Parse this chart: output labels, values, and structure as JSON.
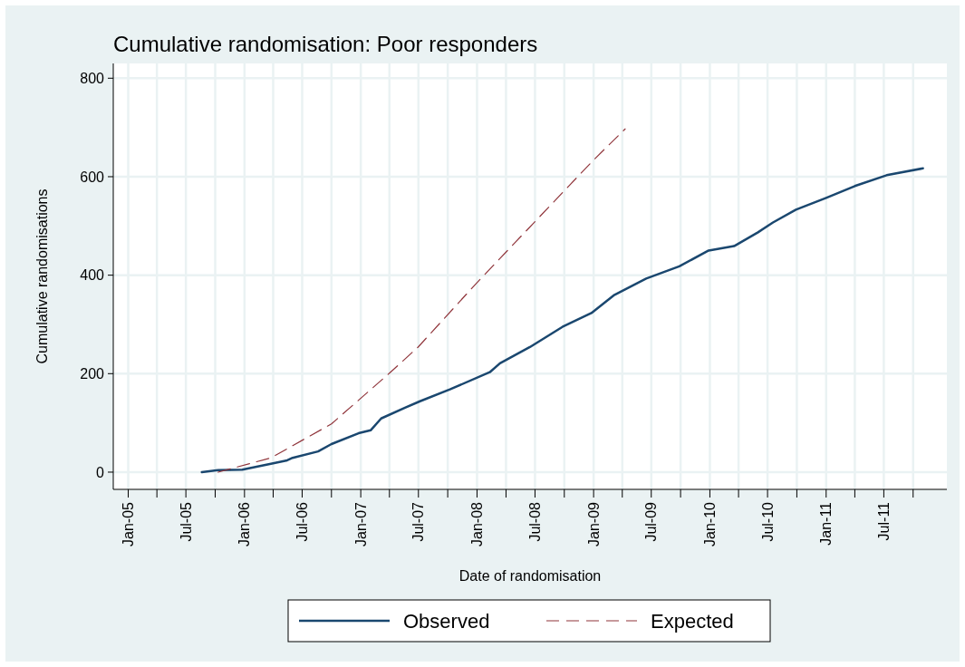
{
  "chart_data": {
    "type": "line",
    "title": "Cumulative randomisation: Poor responders",
    "xlabel": "Date of randomisation",
    "ylabel": "Cumulative randomisations",
    "xlim": [
      "2004-11-15",
      "2012-01-15"
    ],
    "ylim": [
      -35,
      830
    ],
    "xticks": [
      {
        "value": "2005-01",
        "label": "Jan-05"
      },
      {
        "value": "2005-04",
        "label": null
      },
      {
        "value": "2005-07",
        "label": "Jul-05"
      },
      {
        "value": "2005-10",
        "label": null
      },
      {
        "value": "2006-01",
        "label": "Jan-06"
      },
      {
        "value": "2006-04",
        "label": null
      },
      {
        "value": "2006-07",
        "label": "Jul-06"
      },
      {
        "value": "2006-10",
        "label": null
      },
      {
        "value": "2007-01",
        "label": "Jan-07"
      },
      {
        "value": "2007-04",
        "label": null
      },
      {
        "value": "2007-07",
        "label": "Jul-07"
      },
      {
        "value": "2007-10",
        "label": null
      },
      {
        "value": "2008-01",
        "label": "Jan-08"
      },
      {
        "value": "2008-04",
        "label": null
      },
      {
        "value": "2008-07",
        "label": "Jul-08"
      },
      {
        "value": "2008-10",
        "label": null
      },
      {
        "value": "2009-01",
        "label": "Jan-09"
      },
      {
        "value": "2009-04",
        "label": null
      },
      {
        "value": "2009-07",
        "label": "Jul-09"
      },
      {
        "value": "2009-10",
        "label": null
      },
      {
        "value": "2010-01",
        "label": "Jan-10"
      },
      {
        "value": "2010-04",
        "label": null
      },
      {
        "value": "2010-07",
        "label": "Jul-10"
      },
      {
        "value": "2010-10",
        "label": null
      },
      {
        "value": "2011-01",
        "label": "Jan-11"
      },
      {
        "value": "2011-04",
        "label": null
      },
      {
        "value": "2011-07",
        "label": "Jul-11"
      },
      {
        "value": "2011-10",
        "label": null
      }
    ],
    "yticks": [
      0,
      200,
      400,
      600,
      800
    ],
    "grid": true,
    "legend": "bottom",
    "series": [
      {
        "name": "Observed",
        "color": "#1a476f",
        "line_style": "solid",
        "x": [
          "2005-08-20",
          "2005-10-10",
          "2005-12-25",
          "2006-03-25",
          "2006-05-15",
          "2006-06-01",
          "2006-08-20",
          "2006-10-01",
          "2006-12-25",
          "2007-02-01",
          "2007-03-06",
          "2007-05-20",
          "2007-07-06",
          "2007-10-08",
          "2008-02-10",
          "2008-03-13",
          "2008-06-15",
          "2008-09-25",
          "2008-12-25",
          "2009-03-05",
          "2009-06-15",
          "2009-09-27",
          "2009-12-28",
          "2010-03-18",
          "2010-06-01",
          "2010-07-18",
          "2010-09-28",
          "2011-01-01",
          "2011-04-01",
          "2011-07-10",
          "2011-11-01"
        ],
        "values": [
          0,
          4,
          5,
          17,
          24,
          29,
          42,
          57,
          79,
          85,
          109,
          131,
          144,
          168,
          203,
          221,
          254,
          295,
          323,
          359,
          393,
          418,
          450,
          459,
          487,
          507,
          533,
          557,
          581,
          603,
          617
        ]
      },
      {
        "name": "Expected",
        "color": "#90353b",
        "line_style": "dashed",
        "x": [
          "2005-10-10",
          "2006-03-25",
          "2006-10-01",
          "2007-04-01",
          "2007-06-30",
          "2008-01-01",
          "2009-01-01",
          "2009-04-10"
        ],
        "values": [
          0,
          29,
          98,
          201,
          254,
          385,
          634,
          697
        ]
      }
    ]
  }
}
